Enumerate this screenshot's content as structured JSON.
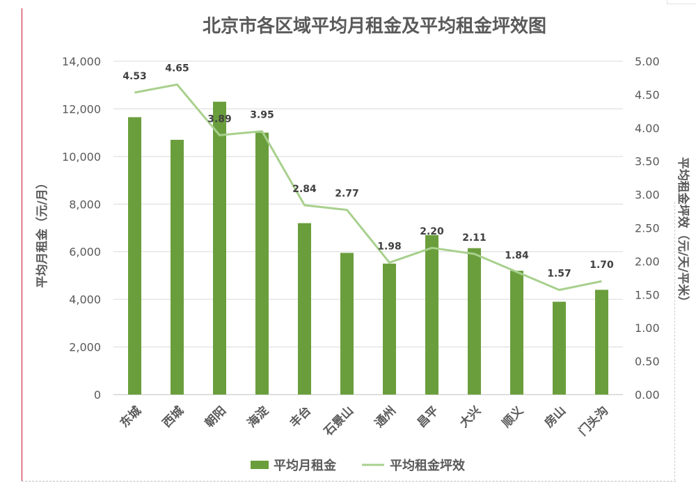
{
  "chart_data": {
    "type": "bar",
    "title": "北京市各区域平均月租金及平均租金坪效图",
    "categories": [
      "东城",
      "西城",
      "朝阳",
      "海淀",
      "丰台",
      "石景山",
      "通州",
      "昌平",
      "大兴",
      "顺义",
      "房山",
      "门头沟"
    ],
    "series": [
      {
        "name": "平均月租金",
        "type": "bar",
        "axis": "left",
        "color": "#6a9e3c",
        "values": [
          11650,
          10700,
          12300,
          11000,
          7200,
          5950,
          5500,
          6700,
          6150,
          5200,
          3900,
          4400
        ]
      },
      {
        "name": "平均租金坪效",
        "type": "line",
        "axis": "right",
        "color": "#a8d08d",
        "values": [
          4.53,
          4.65,
          3.89,
          3.95,
          2.84,
          2.77,
          1.98,
          2.2,
          2.11,
          1.84,
          1.57,
          1.7
        ],
        "data_labels": [
          "4.53",
          "4.65",
          "3.89",
          "3.95",
          "2.84",
          "2.77",
          "1.98",
          "2.20",
          "2.11",
          "1.84",
          "1.57",
          "1.70"
        ]
      }
    ],
    "y_left": {
      "label": "平均月租金（元/月）",
      "lim": [
        0,
        14000
      ],
      "ticks": [
        0,
        2000,
        4000,
        6000,
        8000,
        10000,
        12000,
        14000
      ],
      "tick_labels": [
        "0",
        "2,000",
        "4,000",
        "6,000",
        "8,000",
        "10,000",
        "12,000",
        "14,000"
      ]
    },
    "y_right": {
      "label": "平均租金坪效（元/天/平米）",
      "lim": [
        0,
        5
      ],
      "ticks": [
        0,
        0.5,
        1,
        1.5,
        2,
        2.5,
        3,
        3.5,
        4,
        4.5,
        5
      ],
      "tick_labels": [
        "0.00",
        "0.50",
        "1.00",
        "1.50",
        "2.00",
        "2.50",
        "3.00",
        "3.50",
        "4.00",
        "4.50",
        "5.00"
      ]
    },
    "grid": true,
    "legend_position": "bottom"
  }
}
